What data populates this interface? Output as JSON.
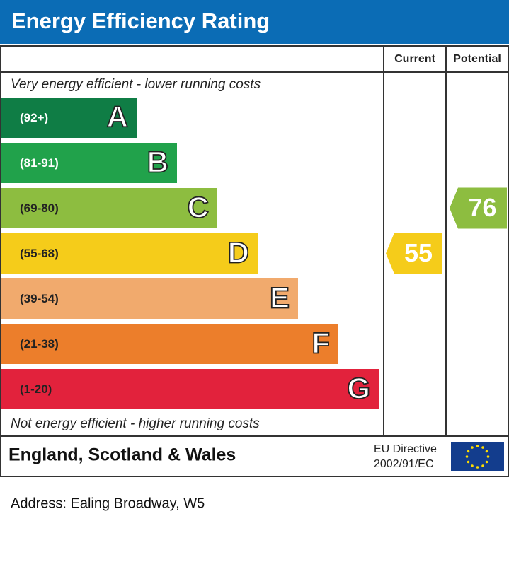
{
  "title": "Energy Efficiency Rating",
  "headers": {
    "current": "Current",
    "potential": "Potential"
  },
  "top_note": "Very energy efficient - lower running costs",
  "bottom_note": "Not energy efficient - higher running costs",
  "bands": [
    {
      "range": "(92+)",
      "letter": "A",
      "color": "#0f7d45",
      "text_color": "#ffffff"
    },
    {
      "range": "(81-91)",
      "letter": "B",
      "color": "#21a24b",
      "text_color": "#ffffff"
    },
    {
      "range": "(69-80)",
      "letter": "C",
      "color": "#8dbd40",
      "text_color": "#222222"
    },
    {
      "range": "(55-68)",
      "letter": "D",
      "color": "#f5cc1a",
      "text_color": "#222222"
    },
    {
      "range": "(39-54)",
      "letter": "E",
      "color": "#f1aa6d",
      "text_color": "#222222"
    },
    {
      "range": "(21-38)",
      "letter": "F",
      "color": "#ec7e2b",
      "text_color": "#222222"
    },
    {
      "range": "(1-20)",
      "letter": "G",
      "color": "#e2223c",
      "text_color": "#222222"
    }
  ],
  "current": {
    "value": 55,
    "color": "#f5cc1a"
  },
  "potential": {
    "value": 76,
    "color": "#8dbd40"
  },
  "footer": {
    "region": "England, Scotland & Wales",
    "directive_line1": "EU Directive",
    "directive_line2": "2002/91/EC"
  },
  "address": "Address: Ealing Broadway, W5"
}
